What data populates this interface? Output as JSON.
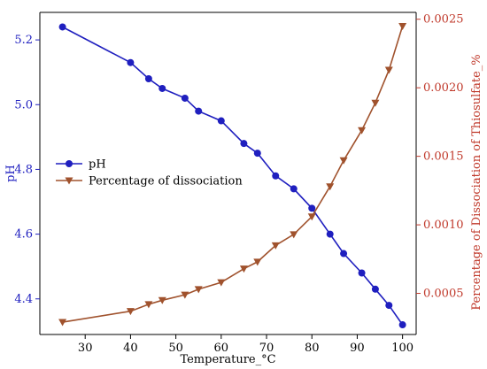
{
  "chart_data": {
    "type": "line",
    "x": [
      25,
      40,
      44,
      47,
      52,
      55,
      60,
      65,
      68,
      72,
      76,
      80,
      84,
      87,
      91,
      94,
      97,
      100
    ],
    "xlabel": "Temperature_°C",
    "xlim": [
      20,
      103
    ],
    "xticks": [
      "30",
      "40",
      "50",
      "60",
      "70",
      "80",
      "90",
      "100"
    ],
    "left_axis": {
      "ylabel": "pH",
      "ylim": [
        4.29,
        5.285
      ],
      "yticks": [
        "4.4",
        "4.6",
        "4.8",
        "5.0",
        "5.2"
      ],
      "color": "#1f1fbf"
    },
    "right_axis": {
      "ylabel": "Percentage of Dissociation of Thiosulfate_%",
      "ylim": [
        0.0002,
        0.00255
      ],
      "yticks": [
        "0.0005",
        "0.0010",
        "0.0015",
        "0.0020",
        "0.0025"
      ],
      "color": "#c0392b"
    },
    "series": [
      {
        "name": "pH",
        "axis": "left",
        "color": "#1f1fbf",
        "marker": "circle",
        "values": [
          5.24,
          5.13,
          5.08,
          5.05,
          5.02,
          4.98,
          4.95,
          4.88,
          4.85,
          4.78,
          4.74,
          4.68,
          4.6,
          4.54,
          4.48,
          4.43,
          4.38,
          4.32
        ]
      },
      {
        "name": "Percentage of dissociation",
        "axis": "right",
        "color": "#a0522d",
        "marker": "triangle-down",
        "values": [
          0.00029,
          0.00037,
          0.00042,
          0.00045,
          0.00049,
          0.00053,
          0.00058,
          0.00068,
          0.00073,
          0.00085,
          0.00093,
          0.00106,
          0.00128,
          0.00147,
          0.00169,
          0.00189,
          0.00213,
          0.00245
        ]
      }
    ],
    "legend_position": "center-left",
    "grid": false
  }
}
